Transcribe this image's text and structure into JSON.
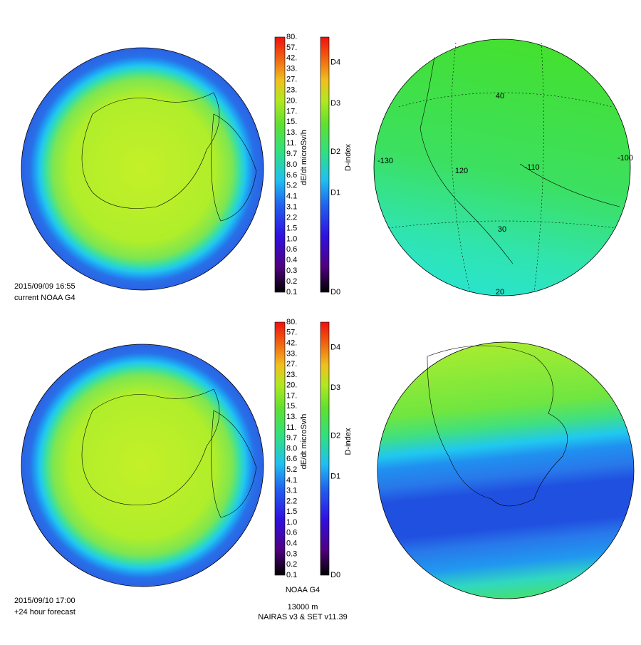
{
  "panels": [
    {
      "timestamp": "2015/09/09 16:55",
      "caption": "current NOAA G4"
    },
    {
      "timestamp": "2015/09/10 17:00",
      "caption": "+24 hour forecast"
    }
  ],
  "dose_colorbar": {
    "label": "dE/dt microSv/h",
    "ticks": [
      "80.",
      "57.",
      "42.",
      "33.",
      "27.",
      "23.",
      "20.",
      "17.",
      "15.",
      "13.",
      "11.",
      "9.7",
      "8.0",
      "6.6",
      "5.2",
      "4.1",
      "3.1",
      "2.2",
      "1.5",
      "1.0",
      "0.6",
      "0.4",
      "0.3",
      "0.2",
      "0.1"
    ]
  },
  "dindex_colorbar": {
    "label": "D-index",
    "ticks": [
      "D4",
      "D3",
      "D2",
      "D1",
      "D0"
    ]
  },
  "map_labels": {
    "longitudes": [
      "-130",
      "120",
      "-110",
      "-100"
    ],
    "latitudes": [
      "40",
      "30",
      "20"
    ]
  },
  "footer": {
    "title": "NOAA G4",
    "altitude": "13000 m",
    "model": "NAIRAS v3 & SET v11.39"
  }
}
